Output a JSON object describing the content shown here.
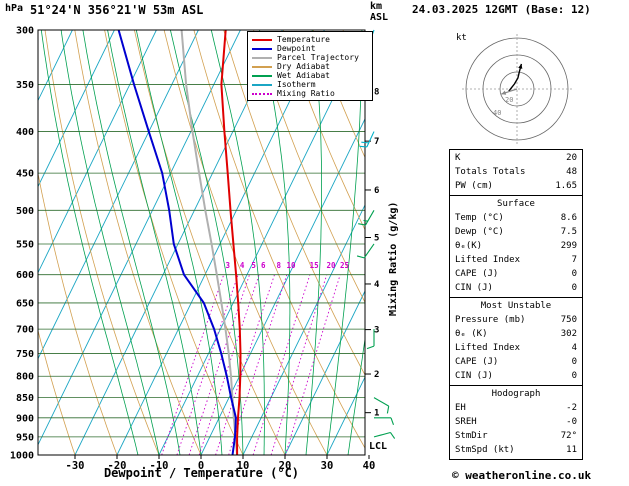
{
  "header": {
    "location": "51°24'N 356°21'W 53m ASL",
    "datetime": "24.03.2025 12GMT (Base: 12)"
  },
  "axes": {
    "pressure_unit": "hPa",
    "pressure_ticks": [
      300,
      350,
      400,
      450,
      500,
      550,
      600,
      650,
      700,
      750,
      800,
      850,
      900,
      950,
      1000
    ],
    "temp_ticks": [
      -30,
      -20,
      -10,
      0,
      10,
      20,
      30,
      40
    ],
    "xlabel": "Dewpoint / Temperature (°C)",
    "right_axis_line1": "km",
    "right_axis_line2": "ASL",
    "km_ticks": [
      1,
      2,
      3,
      4,
      5,
      6,
      7,
      8
    ],
    "mixing_ratio_axis_label": "Mixing Ratio (g/kg)",
    "lcl_label": "LCL"
  },
  "legend": [
    {
      "label": "Temperature",
      "color": "#e00000",
      "style": "solid"
    },
    {
      "label": "Dewpoint",
      "color": "#0000d0",
      "style": "solid"
    },
    {
      "label": "Parcel Trajectory",
      "color": "#b0b0b0",
      "style": "solid"
    },
    {
      "label": "Dry Adiabat",
      "color": "#d2a050",
      "style": "solid"
    },
    {
      "label": "Wet Adiabat",
      "color": "#00a050",
      "style": "solid"
    },
    {
      "label": "Isotherm",
      "color": "#1ba6c4",
      "style": "solid"
    },
    {
      "label": "Mixing Ratio",
      "color": "#cc00cc",
      "style": "dotted"
    }
  ],
  "colors": {
    "temperature": "#e00000",
    "dewpoint": "#0000d0",
    "parcel": "#b0b0b0",
    "dry_adiabat": "#d2a050",
    "wet_adiabat": "#00a050",
    "isotherm": "#1ba6c4",
    "mixing_ratio": "#cc00cc",
    "grid": "#2d6b2d",
    "barb_upper": "#00b0c8",
    "barb_lower": "#00a050"
  },
  "mixing_ratio_labels": [
    3,
    4,
    5,
    6,
    8,
    10,
    15,
    20,
    25
  ],
  "hodograph": {
    "unit_label": "kt",
    "ring_labels": [
      "20",
      "40"
    ],
    "rings_kt": [
      20,
      40,
      60
    ],
    "trace_uv_kt": [
      [
        -9.7,
        -2.6
      ],
      [
        -7,
        1
      ],
      [
        -3,
        6
      ],
      [
        1,
        13
      ],
      [
        3,
        21
      ],
      [
        5.2,
        29.5
      ]
    ],
    "storm_motion_uv_kt": [
      -10.5,
      -3.4
    ]
  },
  "table": {
    "groups": [
      {
        "header": null,
        "rows": [
          [
            "K",
            "20"
          ],
          [
            "Totals Totals",
            "48"
          ],
          [
            "PW (cm)",
            "1.65"
          ]
        ]
      },
      {
        "header": "Surface",
        "rows": [
          [
            "Temp (°C)",
            "8.6"
          ],
          [
            "Dewp (°C)",
            "7.5"
          ],
          [
            "θₑ(K)",
            "299"
          ],
          [
            "Lifted Index",
            "7"
          ],
          [
            "CAPE (J)",
            "0"
          ],
          [
            "CIN (J)",
            "0"
          ]
        ]
      },
      {
        "header": "Most Unstable",
        "rows": [
          [
            "Pressure (mb)",
            "750"
          ],
          [
            "θₑ (K)",
            "302"
          ],
          [
            "Lifted Index",
            "4"
          ],
          [
            "CAPE (J)",
            "0"
          ],
          [
            "CIN (J)",
            "0"
          ]
        ]
      },
      {
        "header": "Hodograph",
        "rows": [
          [
            "EH",
            "-2"
          ],
          [
            "SREH",
            "-0"
          ],
          [
            "StmDir",
            "72°"
          ],
          [
            "StmSpd (kt)",
            "11"
          ]
        ]
      }
    ]
  },
  "copyright": "© weatheronline.co.uk",
  "chart_data": {
    "type": "skewt-log-p",
    "pressure_range_hPa": [
      300,
      1000
    ],
    "temp_axis_range_C": [
      -30,
      40
    ],
    "pressure_hPa": [
      1000,
      950,
      900,
      850,
      800,
      750,
      700,
      650,
      600,
      550,
      500,
      450,
      400,
      350,
      300
    ],
    "temperature_C": [
      8.6,
      6.5,
      4.5,
      2.5,
      0.2,
      -2.4,
      -5.4,
      -8.8,
      -12.6,
      -16.8,
      -21.4,
      -26.4,
      -32.0,
      -38.2,
      -43.5
    ],
    "dewpoint_C": [
      7.5,
      6.0,
      4.0,
      0.5,
      -3.0,
      -7.0,
      -11.5,
      -17.0,
      -25.0,
      -31.0,
      -36.0,
      -42.0,
      -50.0,
      -59.0,
      -69.0
    ],
    "parcel_C": [
      8.6,
      6.1,
      3.5,
      0.8,
      -2.0,
      -5.2,
      -8.8,
      -12.8,
      -17.2,
      -22.0,
      -27.4,
      -33.2,
      -39.6,
      -46.6,
      -54.0
    ],
    "isotherm_step_C": 10,
    "dry_adiabat_theta_C": {
      "min": -30,
      "max": 100,
      "step": 10
    },
    "wet_adiabat_T1000_C": {
      "min": -15,
      "max": 35,
      "step": 5
    },
    "mixing_ratio_g_per_kg": [
      3,
      4,
      5,
      6,
      8,
      10,
      15,
      20,
      25
    ],
    "wind_barbs": [
      {
        "p": 300,
        "spd_kt": 25,
        "dir_deg": 200,
        "color": "#00b0c8"
      },
      {
        "p": 400,
        "spd_kt": 20,
        "dir_deg": 205,
        "color": "#00b0c8"
      },
      {
        "p": 500,
        "spd_kt": 15,
        "dir_deg": 210,
        "color": "#00a050"
      },
      {
        "p": 550,
        "spd_kt": 10,
        "dir_deg": 215,
        "color": "#00a050"
      },
      {
        "p": 700,
        "spd_kt": 10,
        "dir_deg": 180,
        "color": "#00a050"
      },
      {
        "p": 850,
        "spd_kt": 10,
        "dir_deg": 120,
        "color": "#00a050"
      },
      {
        "p": 900,
        "spd_kt": 10,
        "dir_deg": 90,
        "color": "#00a050"
      },
      {
        "p": 950,
        "spd_kt": 10,
        "dir_deg": 75,
        "color": "#00a050"
      }
    ]
  }
}
